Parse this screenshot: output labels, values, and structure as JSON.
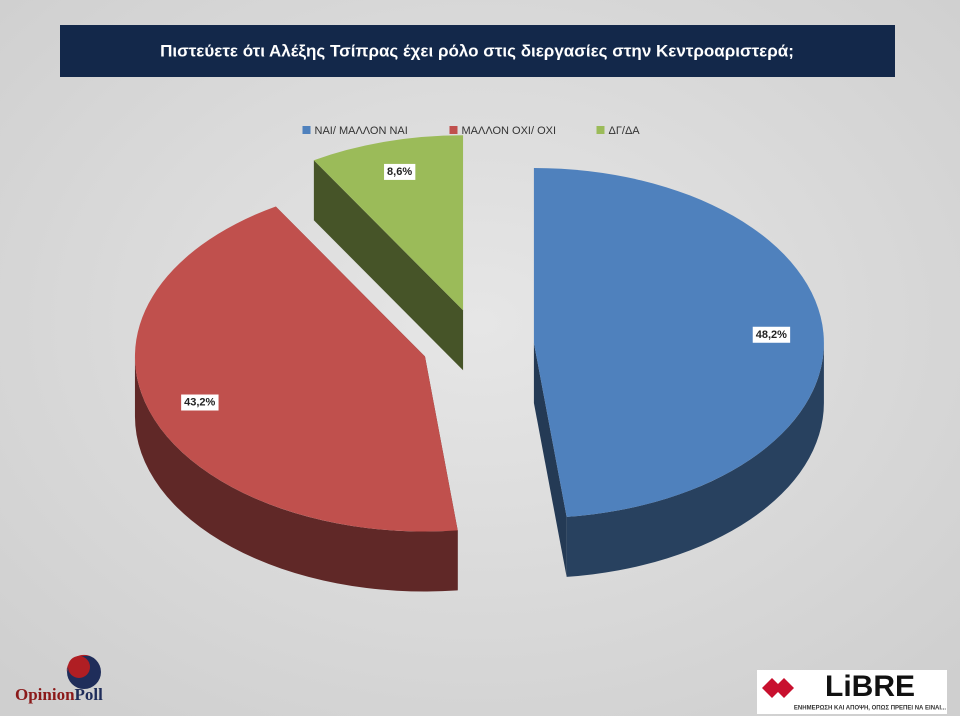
{
  "chart_data": {
    "type": "pie",
    "title": "Πιστεύετε ότι Αλέξης Τσίπρας έχει ρόλο στις διεργασίες στην Κεντροαριστερά;",
    "categories": [
      "ΝΑΙ/ ΜΑΛΛΟΝ ΝΑΙ",
      "ΜΑΛΛΟΝ ΟΧΙ/ ΟΧΙ",
      "ΔΓ/ΔΑ"
    ],
    "values": [
      48.2,
      43.2,
      8.6
    ],
    "value_labels": [
      "48,2%",
      "43,2%",
      "8,6%"
    ],
    "colors": [
      "#4f81bd",
      "#c0504d",
      "#9bbb59"
    ],
    "legend": "top",
    "exploded": true,
    "three_d": true
  },
  "footer": {
    "left_logo": [
      "Opinion",
      "Poll"
    ],
    "right_logo": "LiBRE",
    "right_tagline": "ΕΝΗΜΕΡΩΣΗ ΚΑΙ ΑΠΟΨΗ, ΟΠΩΣ ΠΡΕΠΕΙ ΝΑ ΕΙΝΑΙ..."
  }
}
